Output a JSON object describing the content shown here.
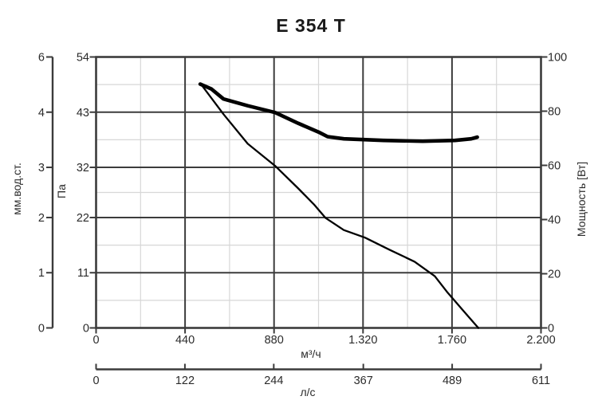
{
  "page": {
    "title": "E 354 T"
  },
  "colors": {
    "background": "#ffffff",
    "frame": "#3b3b3b",
    "major_grid": "#3c3c3c",
    "minor_grid": "#d7d7d7",
    "curve": "#000000",
    "text": "#2b2b2b"
  },
  "chart_data": {
    "type": "line",
    "title": "E 354 T",
    "grid": {
      "major_horizontal_pa": [
        0,
        11,
        22,
        32,
        43,
        54
      ],
      "minor_horizontal_pa": [
        5.5,
        16.5,
        27,
        37.5,
        48.5
      ],
      "major_vertical_flow": [
        440,
        880,
        1320,
        1760
      ],
      "minor_vertical_flow": [
        220,
        660,
        1100,
        1540,
        1980
      ]
    },
    "axes": {
      "left_outer": {
        "label": "мм.вод.ст.",
        "tick_labels": [
          "6",
          "4",
          "3",
          "2",
          "1",
          "0"
        ],
        "tick_pa_positions": [
          54,
          43,
          32,
          22,
          11,
          0
        ]
      },
      "left_inner": {
        "label": "Па",
        "range": [
          0,
          54
        ],
        "tick_labels": [
          "54",
          "43",
          "32",
          "22",
          "11",
          "0"
        ],
        "tick_values": [
          54,
          43,
          32,
          22,
          11,
          0
        ]
      },
      "right": {
        "label": "Мощность [Вт]",
        "range": [
          0,
          100
        ],
        "tick_labels": [
          "100",
          "80",
          "60",
          "40",
          "20",
          "0"
        ],
        "tick_values": [
          100,
          80,
          60,
          40,
          20,
          0
        ]
      },
      "bottom": {
        "label": "м³/ч",
        "range": [
          0,
          2200
        ],
        "tick_labels": [
          "0",
          "440",
          "880",
          "1.320",
          "1.760",
          "2.200"
        ],
        "tick_values": [
          0,
          440,
          880,
          1320,
          1760,
          2200
        ]
      },
      "bottom_secondary": {
        "label": "л/с",
        "range": [
          0,
          611
        ],
        "tick_labels": [
          "0",
          "122",
          "244",
          "367",
          "489",
          "611"
        ],
        "tick_values": [
          0,
          122,
          244,
          367,
          489,
          611
        ]
      }
    },
    "series": [
      {
        "name": "pressure-curve",
        "y_axis": "Па",
        "style": "thin",
        "stroke_width": 2.3,
        "points": [
          [
            520,
            48.5
          ],
          [
            630,
            42.6
          ],
          [
            750,
            36.7
          ],
          [
            885,
            32.3
          ],
          [
            1000,
            27.8
          ],
          [
            1080,
            24.5
          ],
          [
            1135,
            21.9
          ],
          [
            1225,
            19.5
          ],
          [
            1330,
            18.0
          ],
          [
            1450,
            15.6
          ],
          [
            1575,
            13.2
          ],
          [
            1675,
            10.3
          ],
          [
            1735,
            7.2
          ],
          [
            1810,
            3.7
          ],
          [
            1890,
            0
          ]
        ]
      },
      {
        "name": "power-curve",
        "y_axis": "Вт",
        "style": "thick",
        "stroke_width": 4.6,
        "points": [
          [
            515,
            90.0
          ],
          [
            570,
            88.2
          ],
          [
            630,
            84.5
          ],
          [
            750,
            82.0
          ],
          [
            885,
            79.5
          ],
          [
            1000,
            75.5
          ],
          [
            1100,
            72.3
          ],
          [
            1145,
            70.6
          ],
          [
            1225,
            69.8
          ],
          [
            1420,
            69.2
          ],
          [
            1615,
            68.9
          ],
          [
            1775,
            69.2
          ],
          [
            1855,
            69.8
          ],
          [
            1885,
            70.4
          ]
        ]
      }
    ]
  }
}
